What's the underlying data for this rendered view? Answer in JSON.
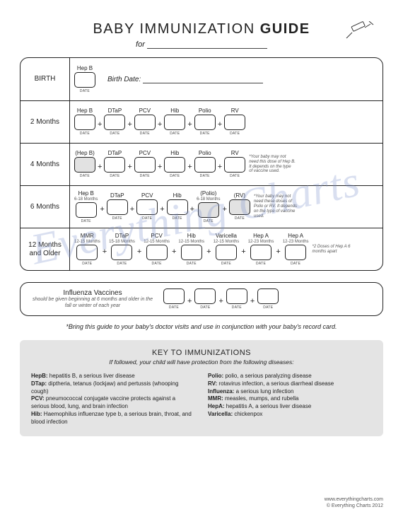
{
  "header": {
    "title_plain": "BABY IMMUNIZATION ",
    "title_bold": "GUIDE",
    "for_label": "for ",
    "birthdate_label": "Birth Date:",
    "date_label": "DATE"
  },
  "watermark": "Everything Charts",
  "schedule": [
    {
      "age": "BIRTH",
      "vaccines": [
        {
          "name": "Hep B",
          "sub": "",
          "shaded": false
        }
      ],
      "show_birthdate": true,
      "note": ""
    },
    {
      "age": "2 Months",
      "vaccines": [
        {
          "name": "Hep B",
          "sub": "",
          "shaded": false
        },
        {
          "name": "DTaP",
          "sub": "",
          "shaded": false
        },
        {
          "name": "PCV",
          "sub": "",
          "shaded": false
        },
        {
          "name": "Hib",
          "sub": "",
          "shaded": false
        },
        {
          "name": "Polio",
          "sub": "",
          "shaded": false
        },
        {
          "name": "RV",
          "sub": "",
          "shaded": false
        }
      ],
      "note": ""
    },
    {
      "age": "4 Months",
      "vaccines": [
        {
          "name": "(Hep B)",
          "sub": "",
          "shaded": true
        },
        {
          "name": "DTaP",
          "sub": "",
          "shaded": false
        },
        {
          "name": "PCV",
          "sub": "",
          "shaded": false
        },
        {
          "name": "Hib",
          "sub": "",
          "shaded": false
        },
        {
          "name": "Polio",
          "sub": "",
          "shaded": false
        },
        {
          "name": "RV",
          "sub": "",
          "shaded": false
        }
      ],
      "note": "*Your baby may not need this dose of Hep B. It depends on the type of vaccine used."
    },
    {
      "age": "6 Months",
      "vaccines": [
        {
          "name": "Hep B",
          "sub": "6-18 Months",
          "shaded": false
        },
        {
          "name": "DTaP",
          "sub": "",
          "shaded": false
        },
        {
          "name": "PCV",
          "sub": "",
          "shaded": false
        },
        {
          "name": "Hib",
          "sub": "",
          "shaded": false
        },
        {
          "name": "(Polio)",
          "sub": "6-18 Months",
          "shaded": true
        },
        {
          "name": "(RV)",
          "sub": "",
          "shaded": true
        }
      ],
      "note": "*Your baby may not need these doses of Polio or RV. It depends on the type of vaccine used."
    },
    {
      "age": "12 Months and Older",
      "vaccines": [
        {
          "name": "MMR",
          "sub": "12-15 Months",
          "shaded": false
        },
        {
          "name": "DTaP",
          "sub": "15-18 Months",
          "shaded": false
        },
        {
          "name": "PCV",
          "sub": "12-15 Months",
          "shaded": false
        },
        {
          "name": "Hib",
          "sub": "12-15 Months",
          "shaded": false
        },
        {
          "name": "Varicella",
          "sub": "12-15 Months",
          "shaded": false
        },
        {
          "name": "Hep A",
          "sub": "12-23 Months",
          "shaded": false
        },
        {
          "name": "Hep A",
          "sub": "12-23 Months",
          "shaded": false
        }
      ],
      "note": "*2 Doses of Hep A 6 months apart"
    }
  ],
  "flu": {
    "title": "Influenza Vaccines",
    "sub": "should be given beginning at 6 months and older in the fall or winter of each year",
    "count": 4
  },
  "footnote": "*Bring this guide to your baby's doctor visits and use in conjunction with your baby's record card.",
  "key": {
    "title": "KEY TO IMMUNIZATIONS",
    "sub": "If followed, your child will have protection from the following diseases:",
    "left": [
      {
        "abbr": "HepB:",
        "text": " hepatitis B, a serious liver disease"
      },
      {
        "abbr": "DTap:",
        "text": " diptheria, tetanus (lockjaw) and pertussis (whooping cough)"
      },
      {
        "abbr": "PCV:",
        "text": " pneumococcal conjugate vaccine protects against a serious blood, lung, and brain infection"
      },
      {
        "abbr": "Hib:",
        "text": " Haemophilus influenzae type b, a serious brain, throat, and blood infection"
      }
    ],
    "right": [
      {
        "abbr": "Polio:",
        "text": " polio, a serious paralyzing disease"
      },
      {
        "abbr": "RV:",
        "text": " rotavirus infection, a serious diarrheal disease"
      },
      {
        "abbr": "Influenza:",
        "text": " a serious lung infection"
      },
      {
        "abbr": "MMR:",
        "text": " measles, mumps, and rubella"
      },
      {
        "abbr": "HepA:",
        "text": " hepatitis A, a serious liver disease"
      },
      {
        "abbr": "Varicella:",
        "text": " chickenpox"
      }
    ]
  },
  "credits": {
    "url": "www.everythingcharts.com",
    "copyright": "© Everything Charts 2012"
  }
}
